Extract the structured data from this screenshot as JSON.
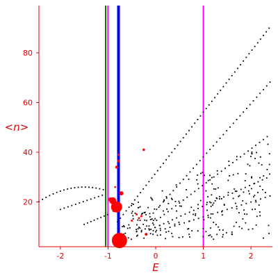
{
  "chart_data": {
    "type": "scatter",
    "title": "",
    "xlabel": "E",
    "ylabel_parts": [
      "<",
      "n",
      ">"
    ],
    "xlim": [
      -2.45,
      2.45
    ],
    "ylim": [
      2,
      99
    ],
    "xticks": [
      -2,
      -1,
      0,
      1,
      2
    ],
    "xtick_labels": [
      "-2",
      "-1",
      "0",
      "1",
      "2"
    ],
    "yticks": [
      20,
      40,
      60,
      80
    ],
    "ytick_labels": [
      "20",
      "40",
      "60",
      "80"
    ],
    "grid": false,
    "colors": {
      "axis": "#e00000",
      "points": "#000000",
      "highlight": "#ff0000",
      "line_green": "#008000",
      "line_magenta": "#ff00ff",
      "line_blue": "#0000ff"
    },
    "vertical_lines": [
      {
        "x": -1.05,
        "color": "#008000",
        "width": 2
      },
      {
        "x": -1.0,
        "color": "#ff00ff",
        "width": 2
      },
      {
        "x": -0.78,
        "color": "#0000ff",
        "width": 4
      },
      {
        "x": 1.0,
        "color": "#ff00ff",
        "width": 2
      }
    ],
    "curves": [
      {
        "name": "parabola",
        "x_start": -2.45,
        "x_end": -1.1,
        "step": 0.075,
        "apex_x": -1.5,
        "apex_y": 26,
        "k": 6.5
      },
      {
        "name": "mid_branch",
        "x_start": -2.0,
        "x_end": -1.1,
        "step": 0.08,
        "a": 17,
        "b": 6.5
      },
      {
        "name": "low_branch",
        "x_start": -1.5,
        "x_end": -1.0,
        "step": 0.07,
        "a": 11,
        "b": 8
      },
      {
        "name": "top_branch",
        "x_start": -0.8,
        "x_end": 2.4,
        "step": 0.06,
        "a": 12,
        "b": 24.5
      },
      {
        "name": "upper_branch",
        "x_start": -0.4,
        "x_end": 2.4,
        "step": 0.07,
        "a": 8,
        "b": 21.5
      },
      {
        "name": "middle_branch",
        "x_start": -0.3,
        "x_end": 2.4,
        "step": 0.08,
        "a": 8,
        "b": 14.5
      },
      {
        "name": "lower_branch",
        "x_start": -0.1,
        "x_end": 2.4,
        "step": 0.09,
        "a": 9,
        "b": 8.5
      },
      {
        "name": "bottom_branch",
        "x_start": 0.0,
        "x_end": 2.4,
        "step": 0.1,
        "a": 8,
        "b": 6
      }
    ],
    "cloud": {
      "count": 230,
      "seed": 7,
      "xmin": -0.7,
      "xmax": 2.4,
      "ymin": 5,
      "ymax": 45
    },
    "highlight_points": [
      {
        "x": -0.76,
        "y": 4.5,
        "r": 11
      },
      {
        "x": -0.82,
        "y": 18,
        "r": 8
      },
      {
        "x": -0.9,
        "y": 20.5,
        "r": 5
      },
      {
        "x": -0.95,
        "y": 21,
        "r": 3
      },
      {
        "x": -0.72,
        "y": 23.5,
        "r": 3
      },
      {
        "x": -0.88,
        "y": 16.5,
        "r": 2
      },
      {
        "x": -0.82,
        "y": 34,
        "r": 2
      },
      {
        "x": -0.78,
        "y": 36.5,
        "r": 2
      },
      {
        "x": -0.78,
        "y": 39,
        "r": 1.6
      },
      {
        "x": -0.25,
        "y": 41,
        "r": 1.8
      },
      {
        "x": -0.4,
        "y": 15,
        "r": 1.5
      },
      {
        "x": -0.35,
        "y": 13.5,
        "r": 1.5
      },
      {
        "x": -0.3,
        "y": 14.3,
        "r": 1.5
      },
      {
        "x": -0.5,
        "y": 12.5,
        "r": 1.5
      },
      {
        "x": -0.2,
        "y": 7,
        "r": 2
      },
      {
        "x": -0.85,
        "y": 26,
        "r": 1.3
      }
    ]
  }
}
